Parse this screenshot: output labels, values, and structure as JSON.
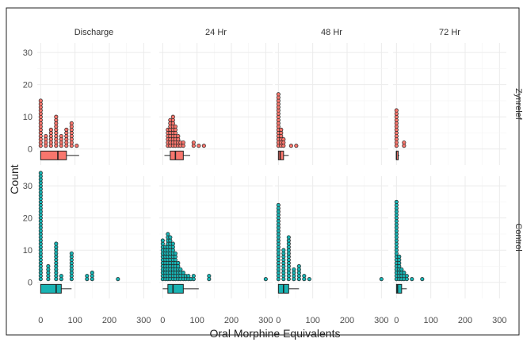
{
  "chart_data": {
    "type": "dotplot-boxplot-facets",
    "xlabel": "Oral Morphine Equivalents",
    "ylabel": "Count",
    "x_ticks": [
      0,
      100,
      200,
      300
    ],
    "y_ticks": [
      0,
      10,
      20,
      30
    ],
    "xlim": [
      -10,
      320
    ],
    "ylim": [
      -5,
      33
    ],
    "grid": true,
    "columns": [
      "Discharge",
      "24 Hr",
      "48 Hr",
      "72 Hr"
    ],
    "rows": [
      {
        "label": "Zynrelef",
        "color": "#f8766d"
      },
      {
        "label": "Control",
        "color": "#19b3b3"
      }
    ],
    "panels": [
      {
        "row": "Zynrelef",
        "col": "Discharge",
        "stacks": [
          [
            0,
            15
          ],
          [
            15,
            4
          ],
          [
            30,
            6
          ],
          [
            45,
            10
          ],
          [
            60,
            4
          ],
          [
            75,
            6
          ],
          [
            90,
            8
          ],
          [
            105,
            1
          ]
        ],
        "box": {
          "q1": 0,
          "median": 50,
          "q3": 75,
          "whisker_low": 0,
          "whisker_high": 112
        }
      },
      {
        "row": "Zynrelef",
        "col": "24 Hr",
        "stacks": [
          [
            15,
            6
          ],
          [
            22,
            9
          ],
          [
            30,
            10
          ],
          [
            37,
            7
          ],
          [
            45,
            4
          ],
          [
            52,
            2
          ],
          [
            60,
            2
          ],
          [
            90,
            2
          ],
          [
            105,
            1
          ],
          [
            120,
            1
          ]
        ],
        "box": {
          "q1": 22,
          "median": 37,
          "q3": 60,
          "whisker_low": 5,
          "whisker_high": 80
        }
      },
      {
        "row": "Zynrelef",
        "col": "48 Hr",
        "stacks": [
          [
            0,
            17
          ],
          [
            8,
            6
          ],
          [
            15,
            3
          ],
          [
            37,
            1
          ],
          [
            52,
            1
          ]
        ],
        "box": {
          "q1": 0,
          "median": 5,
          "q3": 15,
          "whisker_low": 0,
          "whisker_high": 30
        }
      },
      {
        "row": "Zynrelef",
        "col": "72 Hr",
        "stacks": [
          [
            0,
            12
          ],
          [
            22,
            2
          ]
        ],
        "box": {
          "q1": 0,
          "median": 0,
          "q3": 5,
          "whisker_low": 0,
          "whisker_high": 8
        }
      },
      {
        "row": "Control",
        "col": "Discharge",
        "stacks": [
          [
            0,
            34
          ],
          [
            22,
            5
          ],
          [
            45,
            12
          ],
          [
            60,
            2
          ],
          [
            90,
            9
          ],
          [
            135,
            2
          ],
          [
            150,
            3
          ],
          [
            225,
            1
          ]
        ],
        "box": {
          "q1": 0,
          "median": 45,
          "q3": 60,
          "whisker_low": 0,
          "whisker_high": 90
        }
      },
      {
        "row": "Control",
        "col": "24 Hr",
        "stacks": [
          [
            0,
            13
          ],
          [
            8,
            11
          ],
          [
            15,
            15
          ],
          [
            22,
            14
          ],
          [
            30,
            12
          ],
          [
            37,
            9
          ],
          [
            45,
            6
          ],
          [
            52,
            4
          ],
          [
            60,
            3
          ],
          [
            67,
            2
          ],
          [
            75,
            2
          ],
          [
            82,
            1
          ],
          [
            90,
            2
          ],
          [
            135,
            2
          ],
          [
            300,
            1
          ]
        ],
        "box": {
          "q1": 15,
          "median": 30,
          "q3": 60,
          "whisker_low": 0,
          "whisker_high": 105
        }
      },
      {
        "row": "Control",
        "col": "48 Hr",
        "stacks": [
          [
            0,
            24
          ],
          [
            15,
            10
          ],
          [
            30,
            14
          ],
          [
            45,
            4
          ],
          [
            60,
            5
          ],
          [
            75,
            2
          ],
          [
            90,
            1
          ],
          [
            300,
            1
          ]
        ],
        "box": {
          "q1": 0,
          "median": 15,
          "q3": 30,
          "whisker_low": 0,
          "whisker_high": 60
        }
      },
      {
        "row": "Control",
        "col": "72 Hr",
        "stacks": [
          [
            0,
            25
          ],
          [
            8,
            8
          ],
          [
            15,
            4
          ],
          [
            22,
            3
          ],
          [
            30,
            2
          ],
          [
            45,
            1
          ],
          [
            75,
            1
          ]
        ],
        "box": {
          "q1": 0,
          "median": 3,
          "q3": 15,
          "whisker_low": 0,
          "whisker_high": 30
        }
      }
    ]
  }
}
